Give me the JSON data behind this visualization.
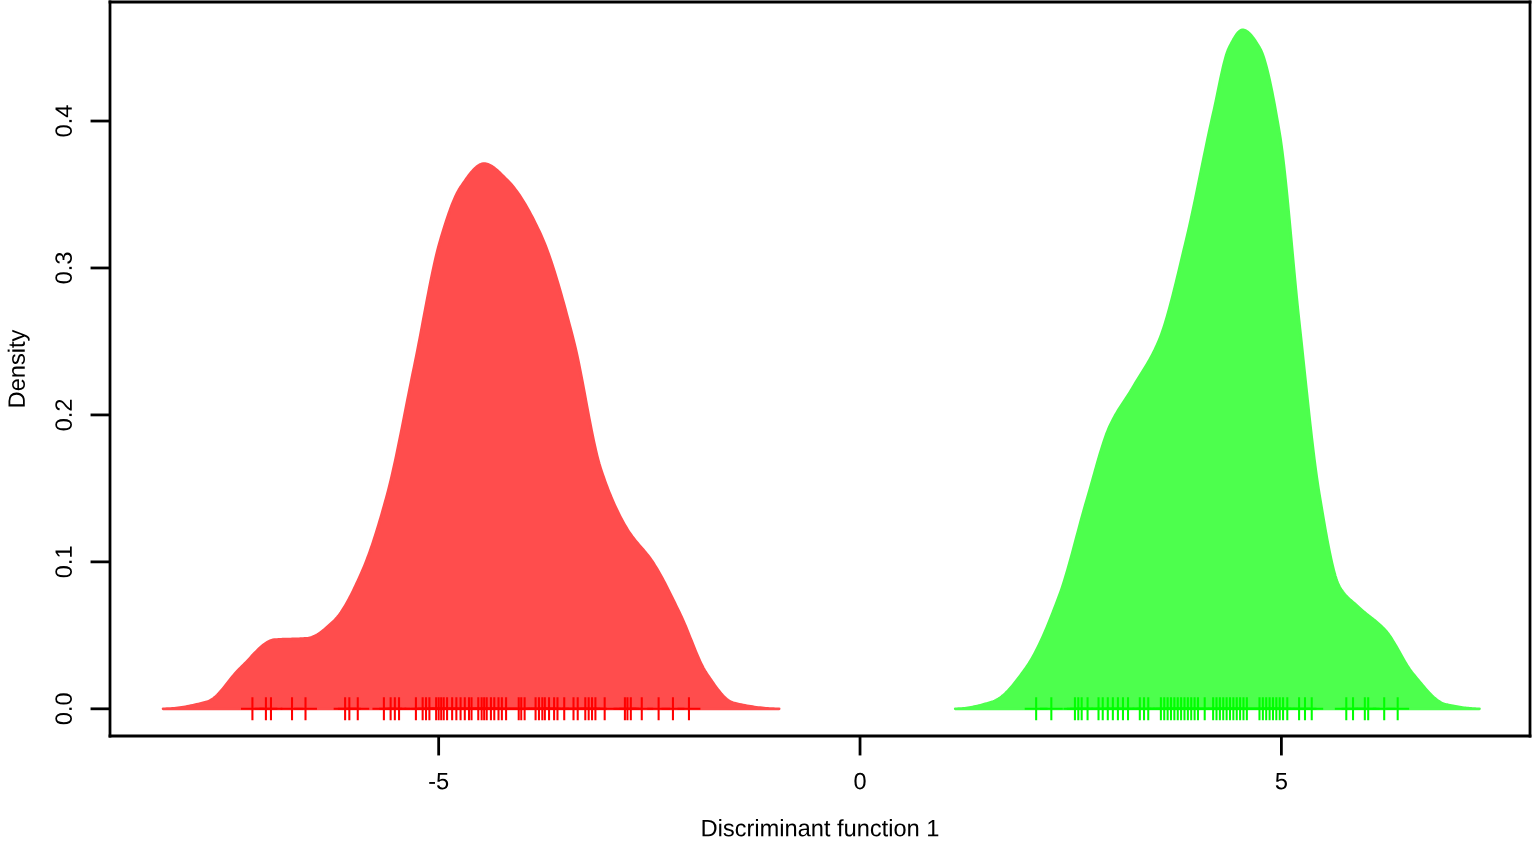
{
  "chart_data": {
    "type": "area",
    "xlabel": "Discriminant function 1",
    "ylabel": "Density",
    "xlim": [
      -8.9,
      7.95
    ],
    "ylim": [
      -0.0185,
      0.481
    ],
    "xticks": [
      -5,
      0,
      5
    ],
    "yticks": [
      {
        "value": 0,
        "label": "0.0"
      },
      {
        "value": 0.1,
        "label": "0.1"
      },
      {
        "value": 0.2,
        "label": "0.2"
      },
      {
        "value": 0.3,
        "label": "0.3"
      },
      {
        "value": 0.4,
        "label": "0.4"
      }
    ],
    "series": [
      {
        "color": "#ff4d4d",
        "x": [
          -8.27,
          -7.74,
          -7.35,
          -6.95,
          -6.56,
          -6.24,
          -5.92,
          -5.61,
          -5.29,
          -4.98,
          -4.74,
          -4.46,
          -4.19,
          -3.79,
          -3.4,
          -3.08,
          -2.77,
          -2.45,
          -2.13,
          -1.82,
          -1.5,
          -0.96
        ],
        "values": [
          0,
          0.005,
          0.028,
          0.047,
          0.048,
          0.06,
          0.092,
          0.146,
          0.233,
          0.319,
          0.355,
          0.371,
          0.36,
          0.323,
          0.251,
          0.164,
          0.123,
          0.099,
          0.064,
          0.024,
          0.004,
          0
        ]
      },
      {
        "color": "#4dff4d",
        "x": [
          1.13,
          1.58,
          1.97,
          2.37,
          2.69,
          2.96,
          3.24,
          3.55,
          3.87,
          4.19,
          4.38,
          4.54,
          4.74,
          4.98,
          5.21,
          5.45,
          5.69,
          5.92,
          6.24,
          6.56,
          6.95,
          7.35
        ],
        "values": [
          0,
          0.005,
          0.028,
          0.078,
          0.142,
          0.192,
          0.219,
          0.251,
          0.319,
          0.405,
          0.45,
          0.462,
          0.45,
          0.391,
          0.264,
          0.146,
          0.083,
          0.069,
          0.053,
          0.024,
          0.003,
          0
        ]
      },
      {
        "type": "scatter",
        "color": "#ff0000",
        "x": [
          -7.21,
          -7.05,
          -6.99,
          -6.74,
          -6.58,
          -6.11,
          -6.06,
          -5.96,
          -5.65,
          -5.57,
          -5.52,
          -5.47,
          -5.27,
          -5.19,
          -5.15,
          -5.11,
          -5.03,
          -5.0,
          -4.97,
          -4.94,
          -4.9,
          -4.84,
          -4.79,
          -4.74,
          -4.69,
          -4.64,
          -4.61,
          -4.53,
          -4.49,
          -4.46,
          -4.43,
          -4.38,
          -4.34,
          -4.29,
          -4.25,
          -4.2,
          -4.05,
          -4.02,
          -3.98,
          -3.85,
          -3.81,
          -3.77,
          -3.74,
          -3.69,
          -3.63,
          -3.59,
          -3.51,
          -3.4,
          -3.35,
          -3.26,
          -3.22,
          -3.18,
          -3.14,
          -3.03,
          -2.79,
          -2.76,
          -2.72,
          -2.59,
          -2.39,
          -2.22,
          -2.03
        ],
        "values": [
          0,
          0,
          0,
          0,
          0,
          0,
          0,
          0,
          0,
          0,
          0,
          0,
          0,
          0,
          0,
          0,
          0,
          0,
          0,
          0,
          0,
          0,
          0,
          0,
          0,
          0,
          0,
          0,
          0,
          0,
          0,
          0,
          0,
          0,
          0,
          0,
          0,
          0,
          0,
          0,
          0,
          0,
          0,
          0,
          0,
          0,
          0,
          0,
          0,
          0,
          0,
          0,
          0,
          0,
          0,
          0,
          0,
          0,
          0,
          0,
          0
        ]
      },
      {
        "type": "scatter",
        "color": "#00ff00",
        "x": [
          2.09,
          2.27,
          2.55,
          2.59,
          2.63,
          2.7,
          2.83,
          2.88,
          2.94,
          3.0,
          3.06,
          3.12,
          3.18,
          3.32,
          3.37,
          3.42,
          3.57,
          3.61,
          3.65,
          3.69,
          3.73,
          3.77,
          3.81,
          3.85,
          3.89,
          3.93,
          3.97,
          4.01,
          4.09,
          4.19,
          4.23,
          4.27,
          4.31,
          4.35,
          4.39,
          4.43,
          4.47,
          4.51,
          4.55,
          4.59,
          4.74,
          4.78,
          4.82,
          4.86,
          4.9,
          4.94,
          4.98,
          5.02,
          5.07,
          5.21,
          5.28,
          5.36,
          5.77,
          5.85,
          5.99,
          6.03,
          6.22,
          6.38
        ],
        "values": [
          0,
          0,
          0,
          0,
          0,
          0,
          0,
          0,
          0,
          0,
          0,
          0,
          0,
          0,
          0,
          0,
          0,
          0,
          0,
          0,
          0,
          0,
          0,
          0,
          0,
          0,
          0,
          0,
          0,
          0,
          0,
          0,
          0,
          0,
          0,
          0,
          0,
          0,
          0,
          0,
          0,
          0,
          0,
          0,
          0,
          0,
          0,
          0,
          0,
          0,
          0,
          0,
          0,
          0,
          0,
          0,
          0,
          0
        ]
      }
    ]
  }
}
